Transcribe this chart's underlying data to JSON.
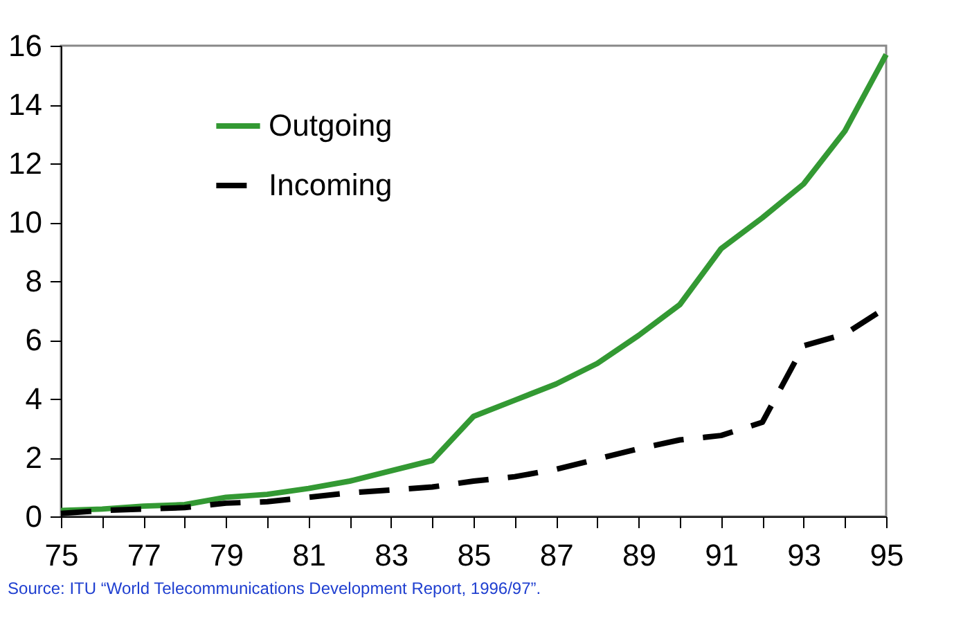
{
  "chart_data": {
    "type": "line",
    "x": [
      75,
      76,
      77,
      78,
      79,
      80,
      81,
      82,
      83,
      84,
      85,
      86,
      87,
      88,
      89,
      90,
      91,
      92,
      93,
      94,
      95
    ],
    "series": [
      {
        "name": "Outgoing",
        "color": "#339933",
        "line_style": "solid",
        "values": [
          0.2,
          0.25,
          0.35,
          0.4,
          0.65,
          0.75,
          0.95,
          1.2,
          1.55,
          1.9,
          3.4,
          3.95,
          4.5,
          5.2,
          6.15,
          7.2,
          9.1,
          10.15,
          11.3,
          13.1,
          15.7
        ]
      },
      {
        "name": "Incoming",
        "color": "#000000",
        "line_style": "dashed",
        "values": [
          0.1,
          0.2,
          0.25,
          0.3,
          0.45,
          0.5,
          0.65,
          0.8,
          0.9,
          1.0,
          1.2,
          1.35,
          1.6,
          1.95,
          2.3,
          2.6,
          2.75,
          3.2,
          5.8,
          6.2,
          7.1
        ]
      }
    ],
    "xlim": [
      75,
      95
    ],
    "xticks": [
      75,
      {
        "value": 76,
        "label": null
      },
      77,
      {
        "value": 78,
        "label": null
      },
      79,
      {
        "value": 80,
        "label": null
      },
      81,
      {
        "value": 82,
        "label": null
      },
      83,
      {
        "value": 84,
        "label": null
      },
      85,
      {
        "value": 86,
        "label": null
      },
      87,
      {
        "value": 88,
        "label": null
      },
      89,
      {
        "value": 90,
        "label": null
      },
      91,
      {
        "value": 92,
        "label": null
      },
      93,
      {
        "value": 94,
        "label": null
      },
      95
    ],
    "ylim": [
      0,
      16
    ],
    "yticks": [
      0,
      2,
      4,
      6,
      8,
      10,
      12,
      14,
      16
    ],
    "grid": false,
    "legend": "top left",
    "marker": "none",
    "annotations": [
      "Source:  ITU “World Telecommunications Development Report, 1996/97”."
    ]
  }
}
